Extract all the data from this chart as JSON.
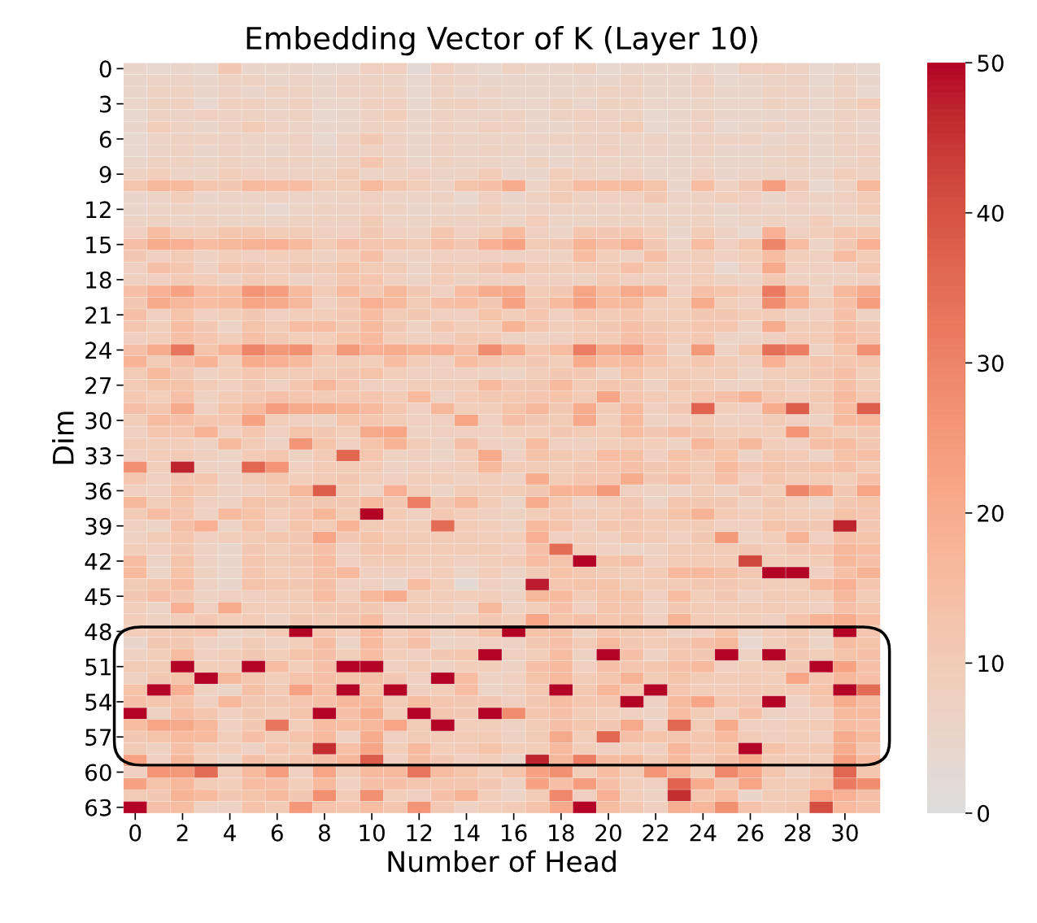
{
  "chart_data": {
    "type": "heatmap",
    "title": "Embedding Vector of K (Layer 10)",
    "xlabel": "Number of Head",
    "ylabel": "Dim",
    "categories": [
      "0",
      null,
      "2",
      null,
      "4",
      null,
      "6",
      null,
      "8",
      null,
      "10",
      null,
      "12",
      null,
      "14",
      null,
      "16",
      null,
      "18",
      null,
      "20",
      null,
      "22",
      null,
      "24",
      null,
      "26",
      null,
      "28",
      null,
      "30",
      null
    ],
    "y_categories": [
      "0",
      null,
      null,
      "3",
      null,
      null,
      "6",
      null,
      null,
      "9",
      null,
      null,
      "12",
      null,
      null,
      "15",
      null,
      null,
      "18",
      null,
      null,
      "21",
      null,
      null,
      "24",
      null,
      null,
      "27",
      null,
      null,
      "30",
      null,
      null,
      "33",
      null,
      null,
      "36",
      null,
      null,
      "39",
      null,
      null,
      "42",
      null,
      null,
      "45",
      null,
      null,
      "48",
      null,
      null,
      "51",
      null,
      null,
      "54",
      null,
      null,
      "57",
      null,
      null,
      "60",
      null,
      null,
      "63"
    ],
    "clim": [
      0,
      50
    ],
    "cticks": [
      0,
      10,
      20,
      30,
      40,
      50
    ],
    "cells": [
      [
        5,
        4,
        5,
        4,
        11,
        5,
        5,
        5,
        4,
        4,
        8,
        8,
        3,
        8,
        5,
        4,
        7,
        5,
        5,
        7,
        4,
        5,
        5,
        5,
        5,
        4,
        8,
        8,
        7,
        4,
        5,
        4
      ],
      [
        5,
        6,
        6,
        5,
        7,
        7,
        5,
        6,
        5,
        7,
        7,
        6,
        4,
        7,
        6,
        5,
        5,
        5,
        5,
        5,
        5,
        7,
        5,
        5,
        8,
        4,
        5,
        6,
        7,
        4,
        7,
        5
      ],
      [
        5,
        7,
        7,
        5,
        7,
        5,
        7,
        7,
        5,
        7,
        7,
        7,
        4,
        7,
        5,
        6,
        5,
        5,
        5,
        6,
        7,
        7,
        5,
        5,
        7,
        5,
        5,
        7,
        7,
        5,
        7,
        4
      ],
      [
        5,
        7,
        8,
        4,
        8,
        8,
        6,
        8,
        5,
        5,
        8,
        8,
        4,
        7,
        8,
        6,
        5,
        5,
        7,
        5,
        7,
        7,
        5,
        5,
        6,
        5,
        5,
        7,
        6,
        5,
        7,
        10
      ],
      [
        4,
        7,
        6,
        8,
        7,
        7,
        6,
        7,
        4,
        5,
        7,
        9,
        5,
        7,
        6,
        6,
        7,
        5,
        7,
        8,
        7,
        7,
        4,
        5,
        7,
        5,
        5,
        5,
        6,
        5,
        7,
        6
      ],
      [
        5,
        9,
        7,
        5,
        7,
        10,
        7,
        6,
        5,
        5,
        7,
        7,
        5,
        7,
        6,
        8,
        7,
        5,
        5,
        7,
        7,
        10,
        4,
        5,
        8,
        4,
        5,
        7,
        5,
        5,
        7,
        5
      ],
      [
        4,
        6,
        7,
        7,
        7,
        6,
        6,
        7,
        4,
        7,
        11,
        7,
        5,
        7,
        6,
        6,
        6,
        6,
        7,
        7,
        7,
        6,
        7,
        5,
        7,
        7,
        7,
        5,
        6,
        5,
        7,
        6
      ],
      [
        4,
        6,
        7,
        5,
        7,
        6,
        5,
        7,
        5,
        7,
        7,
        7,
        5,
        7,
        6,
        7,
        6,
        5,
        5,
        6,
        8,
        6,
        6,
        5,
        7,
        5,
        5,
        6,
        7,
        5,
        7,
        8
      ],
      [
        5,
        7,
        7,
        6,
        7,
        6,
        7,
        7,
        6,
        7,
        12,
        8,
        5,
        7,
        6,
        6,
        5,
        7,
        5,
        7,
        6,
        6,
        5,
        5,
        6,
        5,
        5,
        6,
        7,
        5,
        6,
        8
      ],
      [
        7,
        9,
        6,
        6,
        9,
        8,
        7,
        7,
        7,
        10,
        6,
        7,
        8,
        6,
        7,
        10,
        5,
        5,
        9,
        7,
        6,
        8,
        5,
        5,
        8,
        5,
        6,
        6,
        6,
        6,
        9,
        7
      ],
      [
        12,
        17,
        16,
        12,
        11,
        16,
        15,
        15,
        10,
        9,
        16,
        12,
        9,
        7,
        13,
        14,
        20,
        6,
        10,
        15,
        15,
        16,
        13,
        5,
        15,
        7,
        11,
        24,
        11,
        4,
        7,
        17
      ],
      [
        5,
        6,
        9,
        5,
        6,
        6,
        7,
        6,
        6,
        7,
        8,
        6,
        6,
        7,
        4,
        8,
        5,
        7,
        10,
        7,
        8,
        8,
        11,
        6,
        7,
        9,
        8,
        5,
        8,
        7,
        8,
        10
      ],
      [
        5,
        6,
        7,
        6,
        6,
        6,
        4,
        6,
        7,
        7,
        8,
        7,
        5,
        6,
        6,
        9,
        6,
        7,
        7,
        7,
        6,
        7,
        6,
        6,
        7,
        5,
        7,
        6,
        7,
        6,
        7,
        10
      ],
      [
        6,
        7,
        6,
        7,
        6,
        6,
        6,
        7,
        7,
        7,
        10,
        6,
        6,
        7,
        7,
        7,
        6,
        9,
        6,
        6,
        7,
        7,
        7,
        6,
        7,
        5,
        6,
        7,
        6,
        9,
        6,
        6
      ],
      [
        8,
        15,
        10,
        9,
        12,
        12,
        10,
        10,
        8,
        8,
        11,
        8,
        7,
        12,
        8,
        10,
        16,
        8,
        6,
        12,
        11,
        12,
        9,
        5,
        10,
        7,
        4,
        19,
        8,
        9,
        12,
        12
      ],
      [
        14,
        20,
        19,
        15,
        17,
        18,
        19,
        16,
        10,
        14,
        12,
        12,
        10,
        14,
        11,
        19,
        23,
        10,
        11,
        18,
        14,
        19,
        11,
        6,
        15,
        8,
        12,
        30,
        15,
        6,
        11,
        19
      ],
      [
        11,
        8,
        10,
        7,
        9,
        8,
        9,
        9,
        7,
        9,
        14,
        7,
        7,
        8,
        8,
        8,
        7,
        8,
        7,
        15,
        9,
        7,
        14,
        8,
        9,
        8,
        9,
        15,
        9,
        8,
        15,
        10
      ],
      [
        8,
        14,
        12,
        7,
        12,
        11,
        9,
        11,
        10,
        13,
        10,
        10,
        6,
        10,
        9,
        11,
        15,
        10,
        9,
        10,
        10,
        14,
        10,
        8,
        9,
        4,
        8,
        21,
        8,
        8,
        8,
        12
      ],
      [
        8,
        8,
        10,
        9,
        7,
        10,
        9,
        7,
        8,
        11,
        12,
        8,
        6,
        9,
        7,
        8,
        7,
        8,
        8,
        7,
        10,
        8,
        8,
        8,
        9,
        7,
        6,
        11,
        7,
        7,
        7,
        8
      ],
      [
        14,
        19,
        23,
        15,
        15,
        26,
        24,
        16,
        10,
        16,
        11,
        17,
        11,
        8,
        15,
        20,
        21,
        10,
        11,
        22,
        15,
        21,
        18,
        8,
        14,
        13,
        10,
        32,
        18,
        7,
        17,
        21
      ],
      [
        11,
        21,
        17,
        15,
        16,
        22,
        21,
        17,
        8,
        11,
        19,
        16,
        10,
        14,
        15,
        11,
        23,
        11,
        16,
        23,
        16,
        17,
        9,
        9,
        20,
        9,
        8,
        28,
        18,
        10,
        14,
        24
      ],
      [
        14,
        8,
        13,
        8,
        9,
        11,
        8,
        9,
        9,
        11,
        15,
        10,
        11,
        8,
        8,
        13,
        9,
        12,
        8,
        12,
        10,
        12,
        9,
        9,
        11,
        11,
        10,
        10,
        7,
        8,
        14,
        7
      ],
      [
        12,
        9,
        15,
        11,
        6,
        13,
        10,
        15,
        15,
        11,
        16,
        11,
        7,
        12,
        9,
        9,
        18,
        12,
        9,
        10,
        11,
        14,
        11,
        10,
        12,
        12,
        7,
        20,
        10,
        10,
        14,
        11
      ],
      [
        8,
        9,
        14,
        12,
        9,
        14,
        11,
        9,
        9,
        13,
        16,
        9,
        8,
        8,
        11,
        10,
        7,
        7,
        8,
        10,
        10,
        14,
        12,
        9,
        11,
        6,
        6,
        8,
        10,
        10,
        15,
        12
      ],
      [
        14,
        20,
        33,
        13,
        18,
        30,
        25,
        27,
        14,
        25,
        19,
        20,
        18,
        19,
        14,
        28,
        20,
        12,
        15,
        31,
        21,
        24,
        14,
        7,
        25,
        7,
        12,
        34,
        31,
        7,
        13,
        27
      ],
      [
        18,
        10,
        14,
        18,
        9,
        20,
        19,
        16,
        10,
        10,
        9,
        15,
        10,
        8,
        15,
        12,
        10,
        11,
        9,
        20,
        15,
        16,
        13,
        9,
        12,
        10,
        8,
        19,
        10,
        12,
        12,
        12
      ],
      [
        10,
        16,
        11,
        7,
        9,
        12,
        10,
        10,
        10,
        11,
        13,
        9,
        8,
        8,
        8,
        7,
        6,
        9,
        11,
        11,
        7,
        13,
        9,
        10,
        9,
        10,
        6,
        9,
        10,
        11,
        14,
        9
      ],
      [
        10,
        13,
        13,
        10,
        8,
        11,
        8,
        12,
        17,
        12,
        8,
        8,
        9,
        9,
        9,
        16,
        11,
        11,
        16,
        10,
        12,
        11,
        7,
        12,
        10,
        7,
        7,
        10,
        8,
        10,
        14,
        10
      ],
      [
        11,
        9,
        14,
        7,
        10,
        11,
        14,
        12,
        10,
        11,
        12,
        10,
        16,
        7,
        10,
        11,
        11,
        12,
        13,
        10,
        22,
        12,
        10,
        9,
        12,
        14,
        18,
        11,
        9,
        11,
        16,
        11
      ],
      [
        14,
        12,
        21,
        8,
        13,
        17,
        24,
        21,
        20,
        18,
        16,
        12,
        8,
        17,
        9,
        9,
        13,
        17,
        11,
        20,
        10,
        16,
        8,
        11,
        37,
        9,
        8,
        20,
        38,
        10,
        15,
        38
      ],
      [
        9,
        15,
        14,
        12,
        12,
        23,
        9,
        8,
        7,
        13,
        12,
        10,
        8,
        8,
        22,
        8,
        14,
        11,
        10,
        21,
        9,
        16,
        7,
        8,
        10,
        7,
        8,
        10,
        8,
        7,
        16,
        16
      ],
      [
        8,
        12,
        12,
        18,
        8,
        12,
        8,
        13,
        11,
        9,
        21,
        22,
        7,
        8,
        8,
        8,
        9,
        9,
        11,
        10,
        10,
        15,
        11,
        14,
        11,
        10,
        9,
        9,
        26,
        13,
        10,
        11
      ],
      [
        10,
        9,
        9,
        7,
        16,
        10,
        7,
        26,
        13,
        8,
        13,
        18,
        10,
        7,
        14,
        8,
        7,
        15,
        8,
        8,
        9,
        10,
        9,
        7,
        17,
        12,
        17,
        9,
        8,
        14,
        15,
        11
      ],
      [
        8,
        9,
        10,
        8,
        6,
        10,
        12,
        7,
        10,
        36,
        12,
        7,
        8,
        6,
        9,
        21,
        7,
        13,
        11,
        9,
        15,
        14,
        8,
        13,
        11,
        13,
        6,
        11,
        10,
        6,
        13,
        14
      ],
      [
        27,
        9,
        47,
        7,
        7,
        36,
        26,
        8,
        10,
        10,
        10,
        7,
        8,
        8,
        9,
        17,
        10,
        10,
        9,
        11,
        12,
        14,
        11,
        12,
        10,
        16,
        11,
        13,
        11,
        13,
        14,
        10
      ],
      [
        12,
        8,
        11,
        12,
        7,
        10,
        12,
        9,
        10,
        11,
        9,
        8,
        9,
        9,
        7,
        9,
        7,
        20,
        10,
        12,
        12,
        20,
        11,
        14,
        10,
        14,
        8,
        12,
        10,
        10,
        9,
        14
      ],
      [
        8,
        8,
        13,
        10,
        7,
        8,
        10,
        17,
        38,
        10,
        7,
        19,
        9,
        6,
        10,
        9,
        10,
        11,
        18,
        18,
        25,
        8,
        7,
        6,
        10,
        7,
        11,
        9,
        30,
        23,
        11,
        22
      ],
      [
        17,
        9,
        13,
        8,
        7,
        13,
        11,
        11,
        11,
        11,
        16,
        11,
        31,
        11,
        17,
        10,
        6,
        20,
        12,
        7,
        10,
        11,
        6,
        12,
        11,
        11,
        7,
        11,
        9,
        6,
        11,
        13
      ],
      [
        10,
        15,
        12,
        7,
        16,
        13,
        9,
        12,
        17,
        10,
        50,
        10,
        8,
        11,
        9,
        8,
        7,
        9,
        11,
        10,
        9,
        12,
        10,
        13,
        18,
        10,
        9,
        10,
        9,
        9,
        13,
        12
      ],
      [
        8,
        6,
        14,
        19,
        6,
        13,
        8,
        13,
        10,
        18,
        10,
        10,
        9,
        35,
        10,
        9,
        7,
        16,
        13,
        8,
        12,
        11,
        10,
        10,
        10,
        8,
        8,
        13,
        11,
        11,
        47,
        11
      ],
      [
        7,
        10,
        12,
        8,
        9,
        10,
        12,
        11,
        22,
        11,
        13,
        10,
        10,
        10,
        10,
        9,
        9,
        19,
        8,
        9,
        8,
        12,
        10,
        8,
        11,
        25,
        7,
        9,
        18,
        8,
        14,
        13
      ],
      [
        9,
        8,
        11,
        7,
        5,
        11,
        9,
        11,
        14,
        8,
        12,
        12,
        10,
        10,
        10,
        10,
        8,
        14,
        35,
        9,
        8,
        6,
        7,
        10,
        10,
        10,
        11,
        9,
        11,
        12,
        17,
        15
      ],
      [
        15,
        6,
        13,
        7,
        5,
        12,
        10,
        11,
        15,
        8,
        10,
        10,
        9,
        9,
        8,
        9,
        10,
        15,
        13,
        50,
        13,
        14,
        8,
        10,
        10,
        10,
        42,
        9,
        9,
        10,
        17,
        14
      ],
      [
        16,
        6,
        13,
        7,
        5,
        12,
        9,
        10,
        14,
        16,
        8,
        8,
        8,
        9,
        6,
        9,
        6,
        10,
        13,
        11,
        10,
        9,
        10,
        16,
        16,
        14,
        11,
        50,
        50,
        8,
        14,
        18
      ],
      [
        10,
        12,
        15,
        7,
        5,
        13,
        12,
        11,
        14,
        8,
        8,
        5,
        15,
        9,
        3,
        8,
        6,
        48,
        12,
        13,
        13,
        10,
        10,
        10,
        11,
        11,
        10,
        9,
        9,
        16,
        19,
        12
      ],
      [
        11,
        14,
        11,
        7,
        8,
        8,
        9,
        10,
        15,
        9,
        17,
        20,
        9,
        9,
        9,
        9,
        7,
        17,
        16,
        10,
        13,
        13,
        8,
        15,
        9,
        11,
        7,
        10,
        10,
        9,
        17,
        10
      ],
      [
        9,
        6,
        19,
        8,
        20,
        9,
        9,
        10,
        11,
        11,
        11,
        8,
        10,
        9,
        6,
        17,
        7,
        9,
        14,
        8,
        13,
        12,
        7,
        11,
        10,
        9,
        10,
        10,
        9,
        8,
        14,
        12
      ],
      [
        9,
        7,
        9,
        11,
        9,
        10,
        7,
        11,
        10,
        11,
        15,
        8,
        8,
        7,
        9,
        11,
        9,
        22,
        13,
        14,
        12,
        13,
        8,
        18,
        10,
        9,
        9,
        8,
        13,
        18,
        20,
        15
      ],
      [
        9,
        10,
        11,
        12,
        6,
        7,
        10,
        50,
        12,
        9,
        16,
        9,
        12,
        7,
        9,
        14,
        50,
        13,
        14,
        7,
        12,
        11,
        10,
        7,
        8,
        13,
        6,
        9,
        11,
        7,
        50,
        12
      ],
      [
        5,
        11,
        11,
        7,
        6,
        10,
        7,
        9,
        15,
        6,
        16,
        10,
        14,
        6,
        7,
        8,
        7,
        11,
        14,
        10,
        16,
        11,
        10,
        11,
        14,
        17,
        4,
        9,
        11,
        6,
        15,
        13
      ],
      [
        7,
        9,
        15,
        8,
        9,
        11,
        9,
        13,
        14,
        9,
        15,
        9,
        8,
        11,
        12,
        50,
        8,
        9,
        15,
        7,
        50,
        14,
        7,
        12,
        11,
        50,
        7,
        50,
        11,
        9,
        13,
        14
      ],
      [
        10,
        10,
        50,
        9,
        9,
        50,
        15,
        9,
        14,
        50,
        50,
        8,
        10,
        7,
        9,
        9,
        7,
        14,
        16,
        8,
        14,
        12,
        12,
        14,
        16,
        8,
        9,
        10,
        11,
        50,
        23,
        14
      ],
      [
        7,
        11,
        13,
        50,
        17,
        12,
        9,
        13,
        14,
        13,
        14,
        11,
        8,
        50,
        15,
        7,
        8,
        13,
        16,
        10,
        12,
        18,
        10,
        13,
        10,
        10,
        10,
        9,
        22,
        12,
        17,
        14
      ],
      [
        13,
        50,
        19,
        7,
        6,
        14,
        10,
        23,
        14,
        50,
        13,
        50,
        8,
        9,
        15,
        6,
        8,
        11,
        50,
        11,
        17,
        12,
        50,
        12,
        9,
        9,
        10,
        10,
        10,
        13,
        50,
        35
      ],
      [
        14,
        12,
        13,
        8,
        17,
        11,
        11,
        12,
        14,
        17,
        17,
        10,
        15,
        12,
        11,
        11,
        8,
        11,
        15,
        12,
        12,
        50,
        7,
        16,
        22,
        12,
        11,
        50,
        7,
        12,
        20,
        15
      ],
      [
        50,
        7,
        15,
        12,
        8,
        11,
        9,
        13,
        50,
        14,
        20,
        9,
        50,
        12,
        11,
        50,
        28,
        12,
        14,
        10,
        9,
        8,
        7,
        15,
        10,
        8,
        14,
        7,
        8,
        8,
        16,
        16
      ],
      [
        15,
        22,
        21,
        17,
        8,
        11,
        33,
        9,
        15,
        15,
        17,
        22,
        10,
        50,
        9,
        9,
        7,
        10,
        14,
        12,
        11,
        21,
        8,
        36,
        10,
        21,
        8,
        8,
        9,
        10,
        15,
        14
      ],
      [
        11,
        13,
        16,
        16,
        9,
        14,
        10,
        13,
        16,
        7,
        20,
        8,
        10,
        10,
        10,
        10,
        7,
        10,
        21,
        9,
        36,
        14,
        13,
        12,
        12,
        16,
        10,
        8,
        9,
        8,
        20,
        16
      ],
      [
        10,
        8,
        14,
        9,
        9,
        7,
        12,
        10,
        46,
        14,
        22,
        9,
        16,
        9,
        10,
        13,
        9,
        9,
        16,
        9,
        8,
        9,
        8,
        17,
        12,
        13,
        50,
        13,
        10,
        11,
        20,
        12
      ],
      [
        23,
        8,
        17,
        9,
        6,
        14,
        10,
        13,
        14,
        17,
        38,
        8,
        15,
        11,
        8,
        9,
        6,
        47,
        17,
        31,
        15,
        16,
        10,
        16,
        10,
        14,
        20,
        10,
        10,
        9,
        24,
        16
      ],
      [
        8,
        26,
        25,
        35,
        9,
        16,
        24,
        8,
        22,
        10,
        16,
        16,
        33,
        15,
        13,
        9,
        13,
        23,
        27,
        9,
        15,
        10,
        26,
        18,
        9,
        29,
        22,
        12,
        7,
        11,
        36,
        12
      ],
      [
        23,
        13,
        17,
        10,
        9,
        15,
        14,
        9,
        16,
        8,
        14,
        14,
        12,
        12,
        12,
        11,
        7,
        23,
        14,
        24,
        14,
        9,
        8,
        37,
        20,
        11,
        22,
        10,
        10,
        13,
        32,
        28
      ],
      [
        10,
        11,
        18,
        16,
        11,
        13,
        16,
        11,
        27,
        10,
        27,
        9,
        8,
        14,
        18,
        9,
        6,
        10,
        29,
        8,
        19,
        9,
        7,
        46,
        12,
        15,
        5,
        10,
        10,
        22,
        19,
        14
      ],
      [
        50,
        14,
        15,
        7,
        7,
        13,
        10,
        25,
        13,
        12,
        15,
        12,
        26,
        11,
        7,
        9,
        10,
        13,
        21,
        50,
        15,
        11,
        8,
        19,
        17,
        27,
        13,
        10,
        11,
        41,
        16,
        14
      ]
    ]
  }
}
